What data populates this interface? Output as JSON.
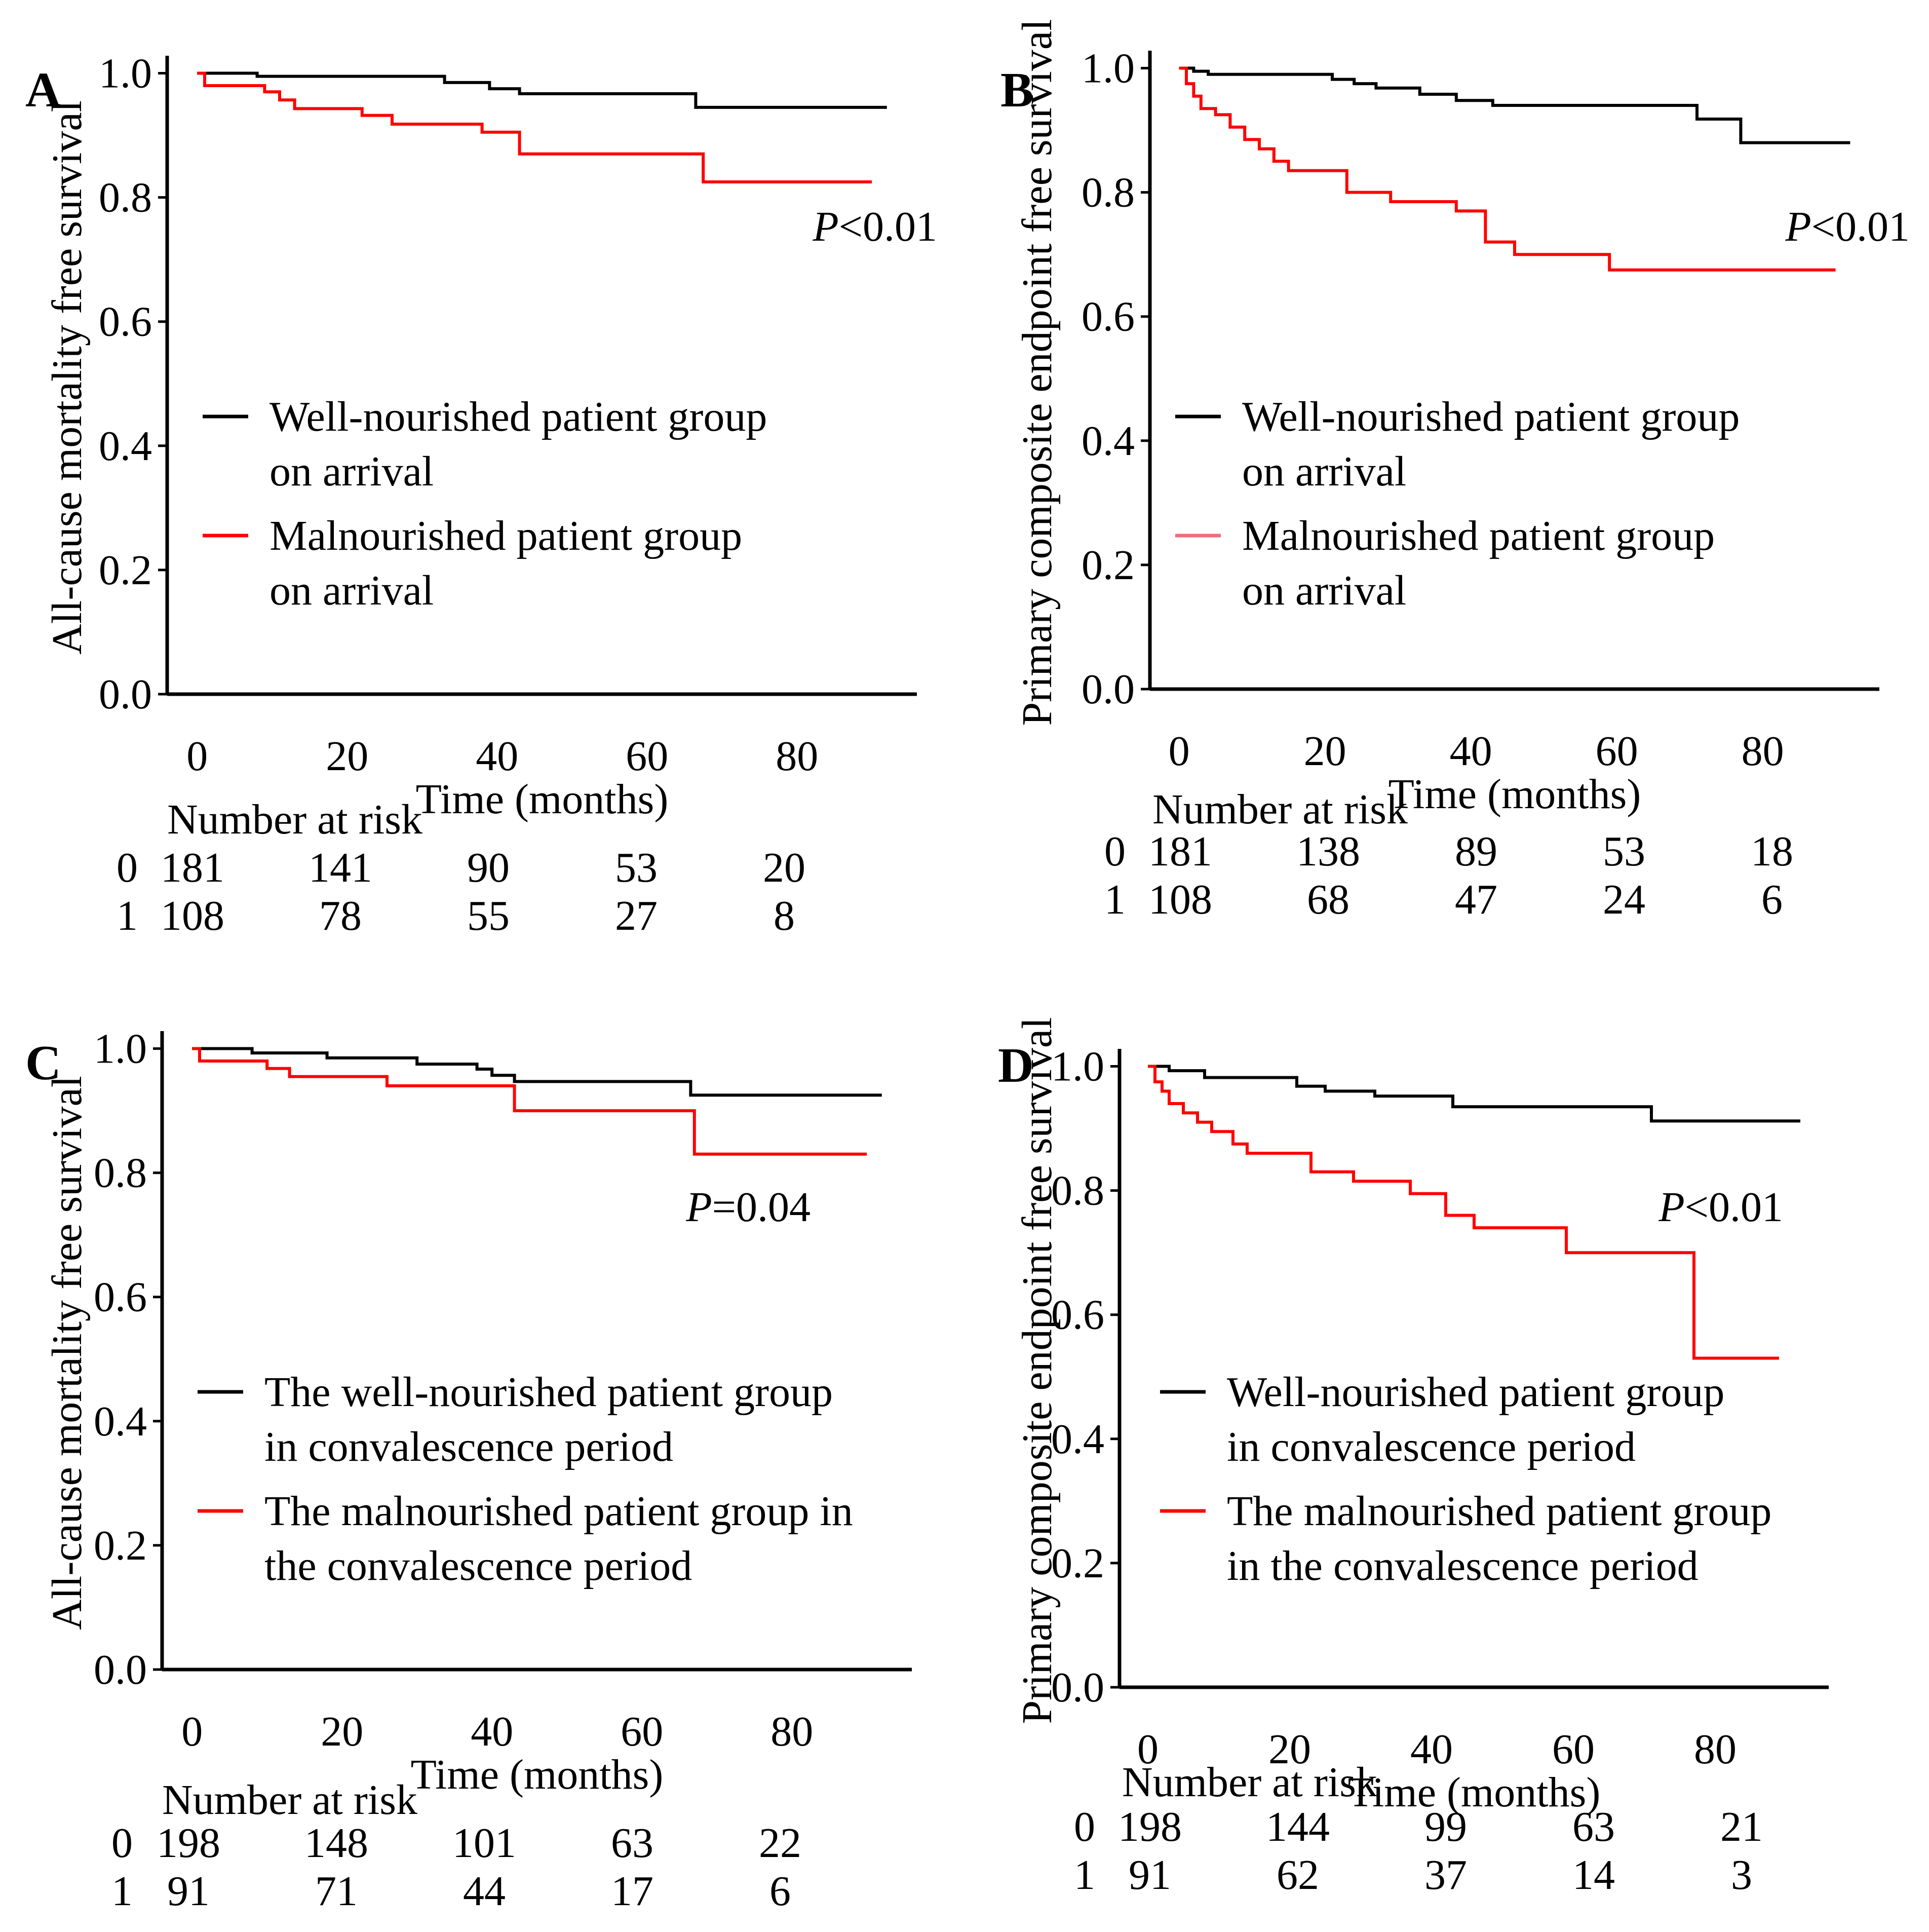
{
  "chart_data": [
    {
      "type": "line",
      "panel": "A",
      "ylabel": "All-cause mortality free survival",
      "xlabel": "Time (months)",
      "xlim": [
        -4,
        96
      ],
      "ylim": [
        0,
        1.02
      ],
      "xticks": [
        "0",
        "20",
        "40",
        "60",
        "80"
      ],
      "yticks": [
        "0.0",
        "0.2",
        "0.4",
        "0.6",
        "0.8",
        "1.0"
      ],
      "pvalue": {
        "prefix": "P",
        "text": "<0.01"
      },
      "legend": [
        {
          "lines": [
            "Well-nourished patient group",
            "on arrival"
          ],
          "color": "#000000"
        },
        {
          "lines": [
            "Malnourished patient group",
            "on arrival"
          ],
          "color": "#ff0000"
        }
      ],
      "series": [
        {
          "name": "Well-nourished patient group on arrival",
          "color": "#000000",
          "points": [
            [
              0,
              1.0
            ],
            [
              8,
              1.0
            ],
            [
              8,
              0.995
            ],
            [
              33,
              0.995
            ],
            [
              33,
              0.985
            ],
            [
              39,
              0.985
            ],
            [
              39,
              0.975
            ],
            [
              43,
              0.975
            ],
            [
              43,
              0.967
            ],
            [
              66.5,
              0.967
            ],
            [
              66.5,
              0.945
            ],
            [
              92,
              0.945
            ]
          ]
        },
        {
          "name": "Malnourished patient group on arrival",
          "color": "#ff0000",
          "points": [
            [
              0,
              1.0
            ],
            [
              1,
              1.0
            ],
            [
              1,
              0.98
            ],
            [
              9,
              0.98
            ],
            [
              9,
              0.97
            ],
            [
              11,
              0.97
            ],
            [
              11,
              0.957
            ],
            [
              13,
              0.957
            ],
            [
              13,
              0.943
            ],
            [
              22,
              0.943
            ],
            [
              22,
              0.932
            ],
            [
              26,
              0.932
            ],
            [
              26,
              0.918
            ],
            [
              38,
              0.918
            ],
            [
              38,
              0.905
            ],
            [
              43,
              0.905
            ],
            [
              43,
              0.87
            ],
            [
              67.5,
              0.87
            ],
            [
              67.5,
              0.825
            ],
            [
              90,
              0.825
            ]
          ]
        }
      ],
      "risk_table": {
        "title": "Number at risk",
        "rows": [
          {
            "label": "0",
            "values": [
              "181",
              "141",
              "90",
              "53",
              "20"
            ]
          },
          {
            "label": "1",
            "values": [
              "108",
              "78",
              "55",
              "27",
              "8"
            ]
          }
        ]
      }
    },
    {
      "type": "line",
      "panel": "B",
      "ylabel": "Primary composite endpoint free survival",
      "xlabel": "Time (months)",
      "xlim": [
        -4,
        96
      ],
      "ylim": [
        0,
        1.02
      ],
      "xticks": [
        "0",
        "20",
        "40",
        "60",
        "80"
      ],
      "yticks": [
        "0.0",
        "0.2",
        "0.4",
        "0.6",
        "0.8",
        "1.0"
      ],
      "pvalue": {
        "prefix": "P",
        "text": "<0.01"
      },
      "legend": [
        {
          "lines": [
            "Well-nourished patient group",
            "on arrival"
          ],
          "color": "#000000"
        },
        {
          "lines": [
            "Malnourished patient group",
            "on arrival"
          ],
          "color": "#f26b78"
        }
      ],
      "series": [
        {
          "name": "Well-nourished patient group on arrival",
          "color": "#000000",
          "points": [
            [
              0,
              1.0
            ],
            [
              2,
              1.0
            ],
            [
              2,
              0.995
            ],
            [
              4,
              0.995
            ],
            [
              4,
              0.99
            ],
            [
              21,
              0.99
            ],
            [
              21,
              0.982
            ],
            [
              24,
              0.982
            ],
            [
              24,
              0.975
            ],
            [
              27,
              0.975
            ],
            [
              27,
              0.968
            ],
            [
              33,
              0.968
            ],
            [
              33,
              0.958
            ],
            [
              38,
              0.958
            ],
            [
              38,
              0.948
            ],
            [
              43,
              0.948
            ],
            [
              43,
              0.94
            ],
            [
              71,
              0.94
            ],
            [
              71,
              0.918
            ],
            [
              77,
              0.918
            ],
            [
              77,
              0.88
            ],
            [
              92,
              0.88
            ]
          ]
        },
        {
          "name": "Malnourished patient group on arrival",
          "color": "#ff0000",
          "points": [
            [
              0,
              1.0
            ],
            [
              1,
              1.0
            ],
            [
              1,
              0.975
            ],
            [
              2,
              0.975
            ],
            [
              2,
              0.955
            ],
            [
              3,
              0.955
            ],
            [
              3,
              0.935
            ],
            [
              5,
              0.935
            ],
            [
              5,
              0.925
            ],
            [
              7,
              0.925
            ],
            [
              7,
              0.905
            ],
            [
              9,
              0.905
            ],
            [
              9,
              0.885
            ],
            [
              11,
              0.885
            ],
            [
              11,
              0.87
            ],
            [
              13,
              0.87
            ],
            [
              13,
              0.85
            ],
            [
              15,
              0.85
            ],
            [
              15,
              0.835
            ],
            [
              23,
              0.835
            ],
            [
              23,
              0.8
            ],
            [
              29,
              0.8
            ],
            [
              29,
              0.785
            ],
            [
              38,
              0.785
            ],
            [
              38,
              0.77
            ],
            [
              42,
              0.77
            ],
            [
              42,
              0.72
            ],
            [
              46,
              0.72
            ],
            [
              46,
              0.7
            ],
            [
              59,
              0.7
            ],
            [
              59,
              0.675
            ],
            [
              90,
              0.675
            ]
          ]
        }
      ],
      "risk_table": {
        "title": "Number at risk",
        "rows": [
          {
            "label": "0",
            "values": [
              "181",
              "138",
              "89",
              "53",
              "18"
            ]
          },
          {
            "label": "1",
            "values": [
              "108",
              "68",
              "47",
              "24",
              "6"
            ]
          }
        ]
      }
    },
    {
      "type": "line",
      "panel": "C",
      "ylabel": "All-cause mortality free survival",
      "xlabel": "Time (months)",
      "xlim": [
        -4,
        96
      ],
      "ylim": [
        0,
        1.02
      ],
      "xticks": [
        "0",
        "20",
        "40",
        "60",
        "80"
      ],
      "yticks": [
        "0.0",
        "0.2",
        "0.4",
        "0.6",
        "0.8",
        "1.0"
      ],
      "pvalue": {
        "prefix": "P",
        "text": "=0.04"
      },
      "legend": [
        {
          "lines": [
            "The well-nourished patient group",
            "in convalescence period"
          ],
          "color": "#000000"
        },
        {
          "lines": [
            "The malnourished patient group in",
            "the convalescence period"
          ],
          "color": "#ff0000"
        }
      ],
      "series": [
        {
          "name": "The well-nourished patient group in convalescence period",
          "color": "#000000",
          "points": [
            [
              0,
              1.0
            ],
            [
              8,
              1.0
            ],
            [
              8,
              0.993
            ],
            [
              18,
              0.993
            ],
            [
              18,
              0.985
            ],
            [
              30,
              0.985
            ],
            [
              30,
              0.975
            ],
            [
              38,
              0.975
            ],
            [
              38,
              0.967
            ],
            [
              40,
              0.967
            ],
            [
              40,
              0.957
            ],
            [
              43,
              0.957
            ],
            [
              43,
              0.947
            ],
            [
              66.5,
              0.947
            ],
            [
              66.5,
              0.925
            ],
            [
              92,
              0.925
            ]
          ]
        },
        {
          "name": "The malnourished patient group in the convalescence period",
          "color": "#ff0000",
          "points": [
            [
              0,
              1.0
            ],
            [
              1,
              1.0
            ],
            [
              1,
              0.98
            ],
            [
              10,
              0.98
            ],
            [
              10,
              0.968
            ],
            [
              13,
              0.968
            ],
            [
              13,
              0.955
            ],
            [
              26,
              0.955
            ],
            [
              26,
              0.94
            ],
            [
              43,
              0.94
            ],
            [
              43,
              0.9
            ],
            [
              67,
              0.9
            ],
            [
              67,
              0.83
            ],
            [
              90,
              0.83
            ]
          ]
        }
      ],
      "risk_table": {
        "title": "Number at risk",
        "rows": [
          {
            "label": "0",
            "values": [
              "198",
              "148",
              "101",
              "63",
              "22"
            ]
          },
          {
            "label": "1",
            "values": [
              "91",
              "71",
              "44",
              "17",
              "6"
            ]
          }
        ]
      }
    },
    {
      "type": "line",
      "panel": "D",
      "ylabel": "Primary composite endpoint free survival",
      "xlabel": "Time (months)",
      "xlim": [
        -4,
        96
      ],
      "ylim": [
        0,
        1.02
      ],
      "xticks": [
        "0",
        "20",
        "40",
        "60",
        "80"
      ],
      "yticks": [
        "0.0",
        "0.2",
        "0.4",
        "0.6",
        "0.8",
        "1.0"
      ],
      "pvalue": {
        "prefix": "P",
        "text": "<0.01"
      },
      "legend": [
        {
          "lines": [
            "Well-nourished patient group",
            "in convalescence period"
          ],
          "color": "#000000"
        },
        {
          "lines": [
            "The malnourished patient group",
            "in the convalescence period"
          ],
          "color": "#ff0000"
        }
      ],
      "series": [
        {
          "name": "Well-nourished patient group in convalescence period",
          "color": "#000000",
          "points": [
            [
              0,
              1.0
            ],
            [
              3,
              1.0
            ],
            [
              3,
              0.993
            ],
            [
              8,
              0.993
            ],
            [
              8,
              0.982
            ],
            [
              21,
              0.982
            ],
            [
              21,
              0.968
            ],
            [
              25,
              0.968
            ],
            [
              25,
              0.96
            ],
            [
              32,
              0.96
            ],
            [
              32,
              0.952
            ],
            [
              43,
              0.952
            ],
            [
              43,
              0.935
            ],
            [
              71,
              0.935
            ],
            [
              71,
              0.912
            ],
            [
              92,
              0.912
            ]
          ]
        },
        {
          "name": "The malnourished patient group in the convalescence period",
          "color": "#ff0000",
          "points": [
            [
              0,
              1.0
            ],
            [
              1,
              1.0
            ],
            [
              1,
              0.975
            ],
            [
              2,
              0.975
            ],
            [
              2,
              0.96
            ],
            [
              3,
              0.96
            ],
            [
              3,
              0.94
            ],
            [
              5,
              0.94
            ],
            [
              5,
              0.925
            ],
            [
              7,
              0.925
            ],
            [
              7,
              0.91
            ],
            [
              9,
              0.91
            ],
            [
              9,
              0.895
            ],
            [
              12,
              0.895
            ],
            [
              12,
              0.875
            ],
            [
              14,
              0.875
            ],
            [
              14,
              0.86
            ],
            [
              23,
              0.86
            ],
            [
              23,
              0.83
            ],
            [
              29,
              0.83
            ],
            [
              29,
              0.815
            ],
            [
              37,
              0.815
            ],
            [
              37,
              0.795
            ],
            [
              42,
              0.795
            ],
            [
              42,
              0.76
            ],
            [
              46,
              0.76
            ],
            [
              46,
              0.74
            ],
            [
              59,
              0.74
            ],
            [
              59,
              0.7
            ],
            [
              77,
              0.7
            ],
            [
              77,
              0.53
            ],
            [
              89,
              0.53
            ]
          ]
        }
      ],
      "risk_table": {
        "title": "Number at risk",
        "rows": [
          {
            "label": "0",
            "values": [
              "198",
              "144",
              "99",
              "63",
              "21"
            ]
          },
          {
            "label": "1",
            "values": [
              "91",
              "62",
              "37",
              "14",
              "3"
            ]
          }
        ]
      }
    }
  ]
}
